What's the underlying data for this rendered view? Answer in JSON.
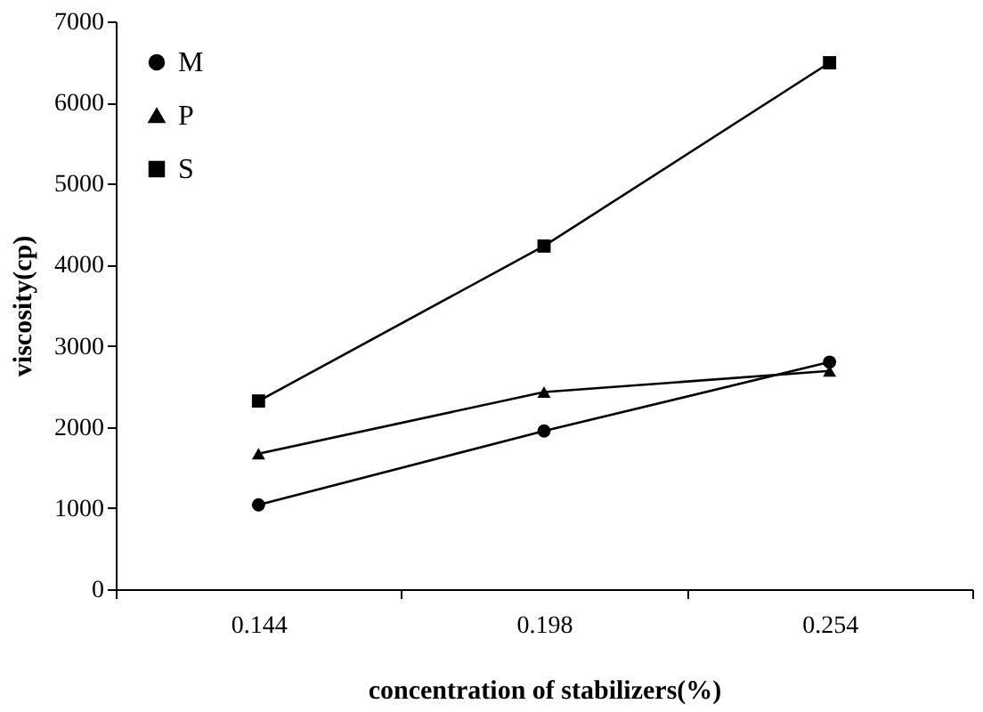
{
  "chart_data": {
    "type": "line",
    "xlabel": "concentration of stabilizers(%)",
    "ylabel": "viscosity(cp)",
    "categories": [
      "0.144",
      "0.198",
      "0.254"
    ],
    "series": [
      {
        "name": "M",
        "color": "#000000",
        "marker": "circle",
        "values": [
          1040,
          1950,
          2800
        ]
      },
      {
        "name": "P",
        "color": "#000000",
        "marker": "triangle",
        "values": [
          1670,
          2430,
          2690
        ]
      },
      {
        "name": "S",
        "color": "#000000",
        "marker": "square",
        "values": [
          2320,
          4230,
          6490
        ]
      }
    ],
    "ylim": [
      0,
      7000
    ],
    "yticks": [
      0,
      1000,
      2000,
      3000,
      4000,
      5000,
      6000,
      7000
    ],
    "grid": false,
    "legend": "top left",
    "line_style": "solid"
  }
}
